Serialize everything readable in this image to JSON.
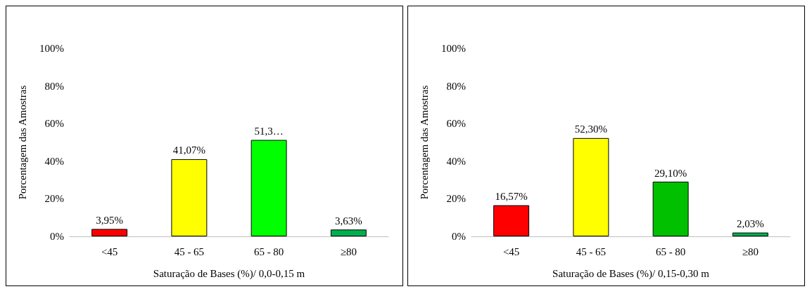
{
  "chart_data": [
    {
      "type": "bar",
      "xlabel": "Saturação de Bases (%)/ 0,0-0,15 m",
      "ylabel": "Porcentagem das Amostras",
      "categories": [
        "<45",
        "45 - 65",
        "65 - 80",
        "≥80"
      ],
      "values": [
        3.95,
        41.07,
        51.3,
        3.63
      ],
      "colors": [
        "#ff0000",
        "#ffff00",
        "#00ff00",
        "#00b050"
      ],
      "value_labels": [
        "3,95%",
        "41,07%",
        "51,3…",
        "3,63%"
      ],
      "ylim": [
        0,
        100
      ],
      "yticks": [
        {
          "value": 0,
          "label": "0%"
        },
        {
          "value": 20,
          "label": "20%"
        },
        {
          "value": 40,
          "label": "40%"
        },
        {
          "value": 60,
          "label": "60%"
        },
        {
          "value": 80,
          "label": "80%"
        },
        {
          "value": 100,
          "label": "100%"
        }
      ]
    },
    {
      "type": "bar",
      "xlabel": "Saturação de Bases (%)/ 0,15-0,30 m",
      "ylabel": "Porcentagem das Amostras",
      "categories": [
        "<45",
        "45 - 65",
        "65 - 80",
        "≥80"
      ],
      "values": [
        16.57,
        52.3,
        29.1,
        2.03
      ],
      "colors": [
        "#ff0000",
        "#ffff00",
        "#00c000",
        "#00b050"
      ],
      "value_labels": [
        "16,57%",
        "52,30%",
        "29,10%",
        "2,03%"
      ],
      "ylim": [
        0,
        100
      ],
      "yticks": [
        {
          "value": 0,
          "label": "0%"
        },
        {
          "value": 20,
          "label": "20%"
        },
        {
          "value": 40,
          "label": "40%"
        },
        {
          "value": 60,
          "label": "60%"
        },
        {
          "value": 80,
          "label": "80%"
        },
        {
          "value": 100,
          "label": "100%"
        }
      ]
    }
  ]
}
